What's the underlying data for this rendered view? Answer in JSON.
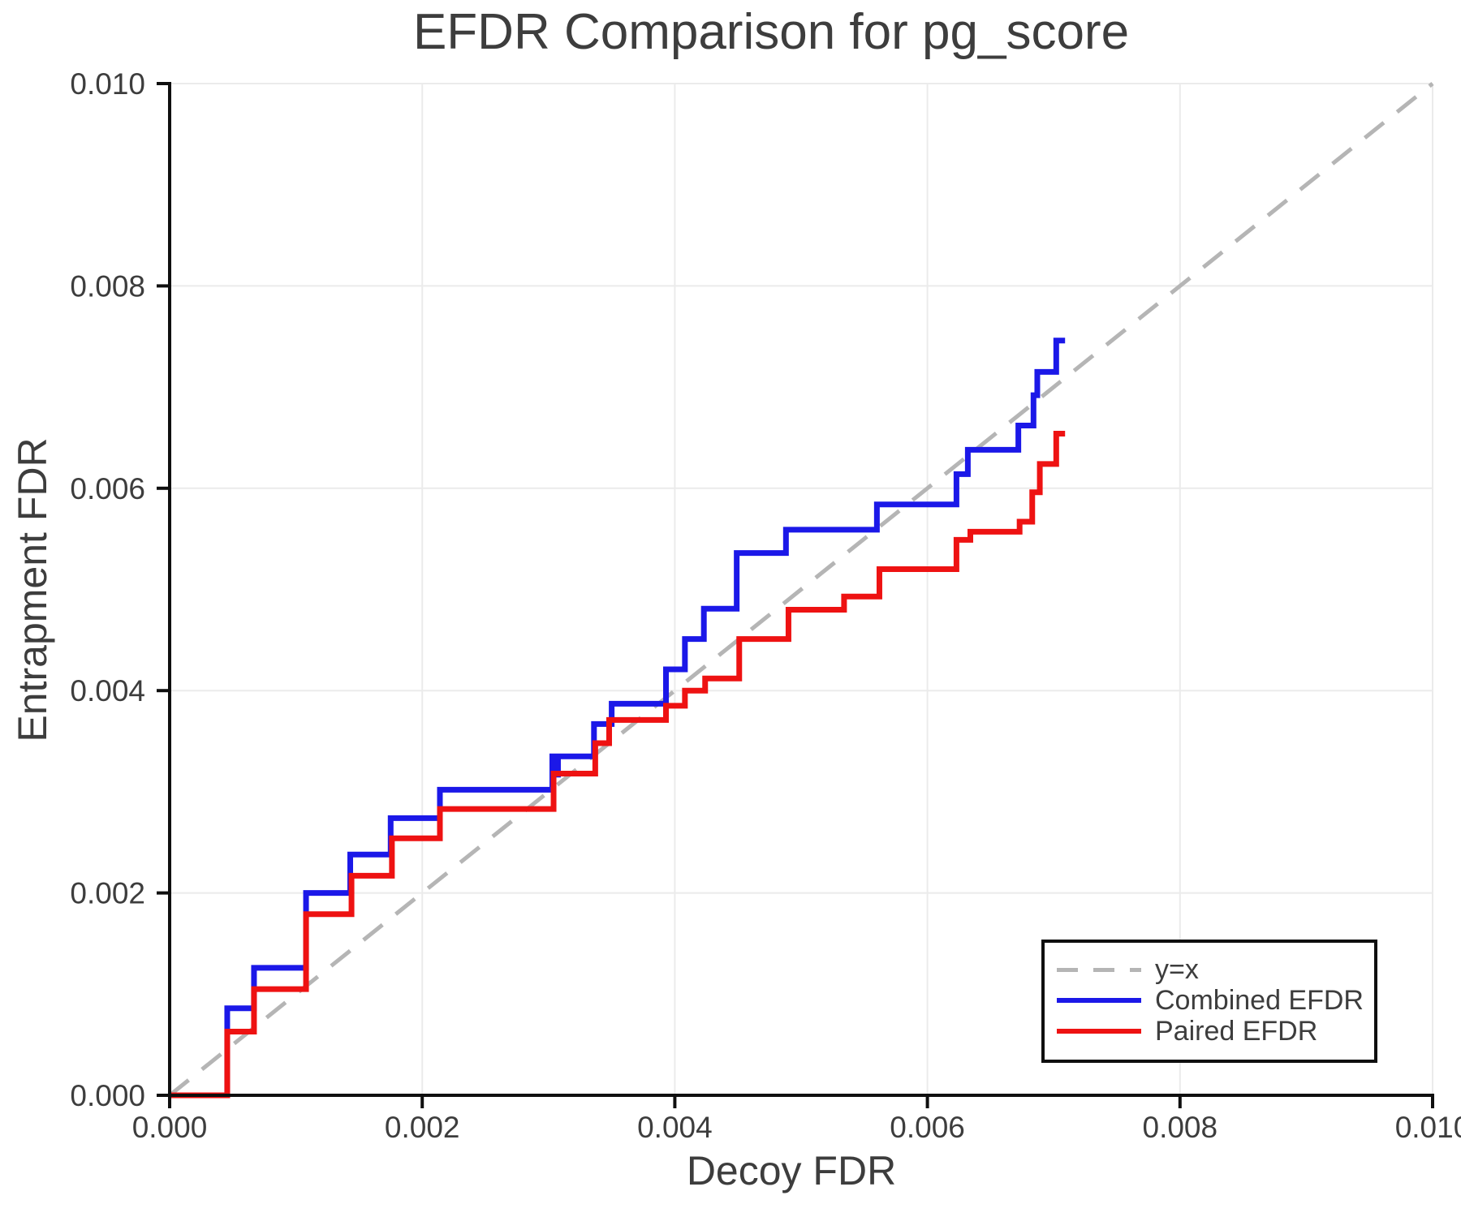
{
  "chart_data": {
    "type": "line",
    "title": "EFDR Comparison for pg_score",
    "xlabel": "Decoy FDR",
    "ylabel": "Entrapment FDR",
    "xlim": [
      0.0,
      0.01
    ],
    "ylim": [
      0.0,
      0.01
    ],
    "grid": true,
    "legend_position": "lower right",
    "xticks": [
      {
        "v": 0.0,
        "label": "0.000"
      },
      {
        "v": 0.002,
        "label": "0.002"
      },
      {
        "v": 0.004,
        "label": "0.004"
      },
      {
        "v": 0.006,
        "label": "0.006"
      },
      {
        "v": 0.008,
        "label": "0.008"
      },
      {
        "v": 0.01,
        "label": "0.010"
      }
    ],
    "yticks": [
      {
        "v": 0.0,
        "label": "0.000"
      },
      {
        "v": 0.002,
        "label": "0.002"
      },
      {
        "v": 0.004,
        "label": "0.004"
      },
      {
        "v": 0.006,
        "label": "0.006"
      },
      {
        "v": 0.008,
        "label": "0.008"
      },
      {
        "v": 0.01,
        "label": "0.010"
      }
    ],
    "series": [
      {
        "name": "y=x",
        "draw": "line",
        "style": "dashed",
        "color": "#b5b5b5",
        "width": 5,
        "points": [
          [
            0.0,
            0.0
          ],
          [
            0.01,
            0.01
          ]
        ]
      },
      {
        "name": "Combined EFDR",
        "draw": "step",
        "style": "solid",
        "color": "#1b18e8",
        "width": 7,
        "points": [
          [
            0.0,
            0.0
          ],
          [
            0.000456,
            0.00086
          ],
          [
            0.000668,
            0.00126
          ],
          [
            0.00108,
            0.002
          ],
          [
            0.00143,
            0.00238
          ],
          [
            0.00175,
            0.00274
          ],
          [
            0.00214,
            0.00302
          ],
          [
            0.00303,
            0.00335
          ],
          [
            0.003055,
            0.00317
          ],
          [
            0.003075,
            0.00335
          ],
          [
            0.00336,
            0.00367
          ],
          [
            0.0035,
            0.00387
          ],
          [
            0.00393,
            0.00421
          ],
          [
            0.00408,
            0.00451
          ],
          [
            0.00423,
            0.00481
          ],
          [
            0.00449,
            0.00536
          ],
          [
            0.00488,
            0.00559
          ],
          [
            0.0056,
            0.00584
          ],
          [
            0.00623,
            0.00614
          ],
          [
            0.00632,
            0.00638
          ],
          [
            0.00672,
            0.00662
          ],
          [
            0.00684,
            0.00692
          ],
          [
            0.00687,
            0.00715
          ],
          [
            0.00702,
            0.00746
          ],
          [
            0.00709,
            0.00746
          ]
        ]
      },
      {
        "name": "Paired EFDR",
        "draw": "step",
        "style": "solid",
        "color": "#ee1212",
        "width": 7,
        "points": [
          [
            0.0,
            0.0
          ],
          [
            0.000456,
            0.00063
          ],
          [
            0.000668,
            0.00105
          ],
          [
            0.00108,
            0.00179
          ],
          [
            0.00144,
            0.00217
          ],
          [
            0.00176,
            0.00254
          ],
          [
            0.00214,
            0.00283
          ],
          [
            0.00304,
            0.00318
          ],
          [
            0.00337,
            0.00348
          ],
          [
            0.00348,
            0.00371
          ],
          [
            0.00393,
            0.00385
          ],
          [
            0.00408,
            0.004
          ],
          [
            0.00424,
            0.00412
          ],
          [
            0.00451,
            0.00451
          ],
          [
            0.0049,
            0.0048
          ],
          [
            0.00534,
            0.00493
          ],
          [
            0.00562,
            0.0052
          ],
          [
            0.00623,
            0.00549
          ],
          [
            0.00634,
            0.00557
          ],
          [
            0.00673,
            0.00567
          ],
          [
            0.00683,
            0.00596
          ],
          [
            0.00689,
            0.00624
          ],
          [
            0.00702,
            0.00654
          ],
          [
            0.00709,
            0.00654
          ]
        ]
      }
    ],
    "colors": {
      "text": "#3d3d3d",
      "spine": "#0f0f0f",
      "grid": "#ebebeb",
      "background": "#ffffff"
    }
  },
  "legend": {
    "entries": [
      {
        "label": "y=x"
      },
      {
        "label": "Combined EFDR"
      },
      {
        "label": "Paired EFDR"
      }
    ]
  }
}
